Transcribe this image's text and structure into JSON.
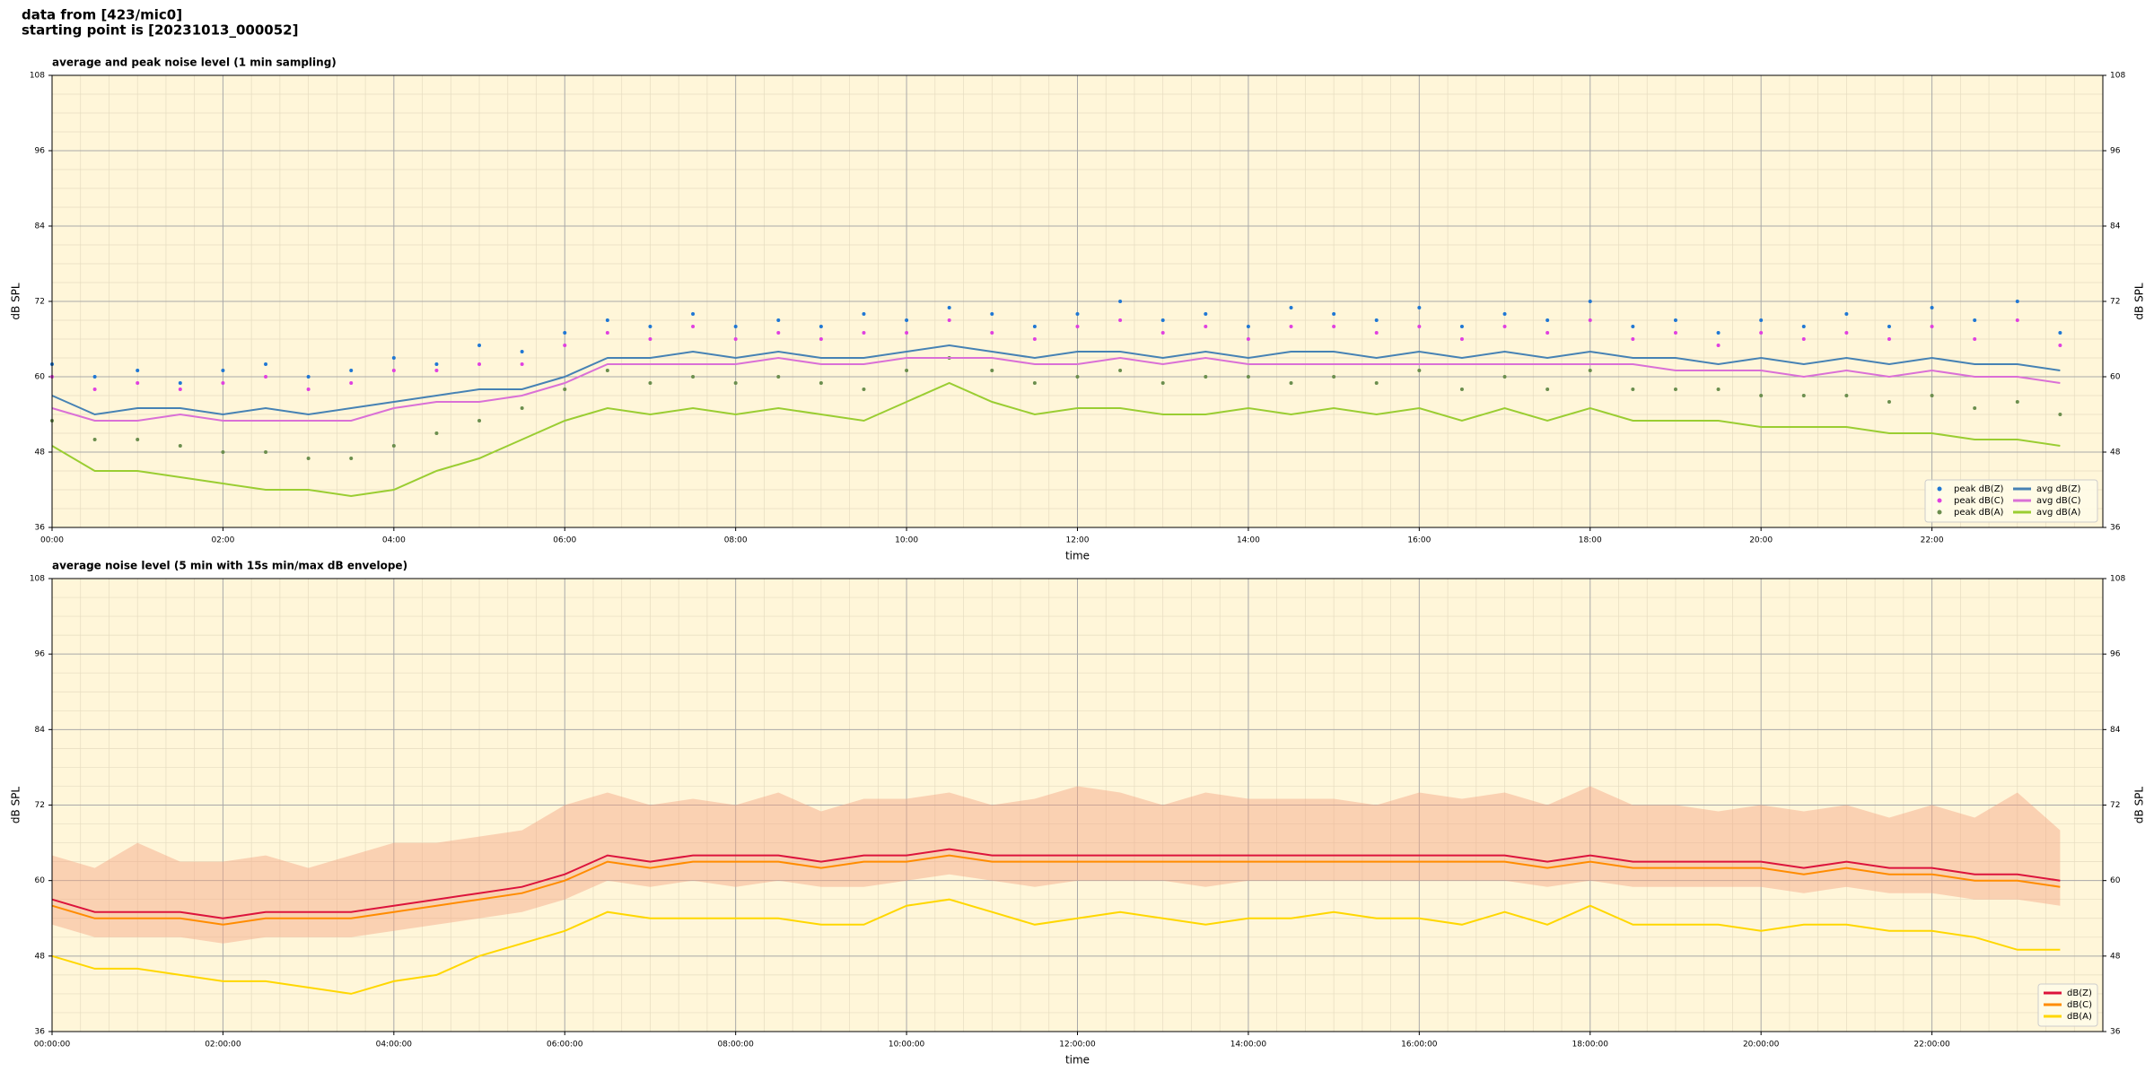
{
  "header": {
    "line1": "data from [423/mic0]",
    "line2": "starting point is [20231013_000052]"
  },
  "chart_data": [
    {
      "type": "line",
      "title": "average and peak noise level (1 min sampling)",
      "xlabel": "time",
      "ylabel": "dB SPL",
      "x": [
        "00:00",
        "00:30",
        "01:00",
        "01:30",
        "02:00",
        "02:30",
        "03:00",
        "03:30",
        "04:00",
        "04:30",
        "05:00",
        "05:30",
        "06:00",
        "06:30",
        "07:00",
        "07:30",
        "08:00",
        "08:30",
        "09:00",
        "09:30",
        "10:00",
        "10:30",
        "11:00",
        "11:30",
        "12:00",
        "12:30",
        "13:00",
        "13:30",
        "14:00",
        "14:30",
        "15:00",
        "15:30",
        "16:00",
        "16:30",
        "17:00",
        "17:30",
        "18:00",
        "18:30",
        "19:00",
        "19:30",
        "20:00",
        "20:30",
        "21:00",
        "21:30",
        "22:00",
        "22:30",
        "23:00",
        "23:30"
      ],
      "series": [
        {
          "name": "peak dB(Z)",
          "color": "#1f77d4",
          "mode": "markers",
          "values": [
            62,
            60,
            61,
            59,
            61,
            62,
            60,
            61,
            63,
            62,
            65,
            64,
            67,
            69,
            68,
            70,
            68,
            69,
            68,
            70,
            69,
            71,
            70,
            68,
            70,
            72,
            69,
            70,
            68,
            71,
            70,
            69,
            71,
            68,
            70,
            69,
            72,
            68,
            69,
            67,
            69,
            68,
            70,
            68,
            71,
            69,
            72,
            67
          ]
        },
        {
          "name": "peak dB(C)",
          "color": "#e040e0",
          "mode": "markers",
          "values": [
            60,
            58,
            59,
            58,
            59,
            60,
            58,
            59,
            61,
            61,
            62,
            62,
            65,
            67,
            66,
            68,
            66,
            67,
            66,
            67,
            67,
            69,
            67,
            66,
            68,
            69,
            67,
            68,
            66,
            68,
            68,
            67,
            68,
            66,
            68,
            67,
            69,
            66,
            67,
            65,
            67,
            66,
            67,
            66,
            68,
            66,
            69,
            65
          ]
        },
        {
          "name": "peak dB(A)",
          "color": "#6b8e4e",
          "mode": "markers",
          "values": [
            53,
            50,
            50,
            49,
            48,
            48,
            47,
            47,
            49,
            51,
            53,
            55,
            58,
            61,
            59,
            60,
            59,
            60,
            59,
            58,
            61,
            63,
            61,
            59,
            60,
            61,
            59,
            60,
            60,
            59,
            60,
            59,
            61,
            58,
            60,
            58,
            61,
            58,
            58,
            58,
            57,
            57,
            57,
            56,
            57,
            55,
            56,
            54
          ]
        },
        {
          "name": "avg dB(Z)",
          "color": "#4682b4",
          "mode": "line",
          "values": [
            57,
            54,
            55,
            55,
            54,
            55,
            54,
            55,
            56,
            57,
            58,
            58,
            60,
            63,
            63,
            64,
            63,
            64,
            63,
            63,
            64,
            65,
            64,
            63,
            64,
            64,
            63,
            64,
            63,
            64,
            64,
            63,
            64,
            63,
            64,
            63,
            64,
            63,
            63,
            62,
            63,
            62,
            63,
            62,
            63,
            62,
            62,
            61
          ]
        },
        {
          "name": "avg dB(C)",
          "color": "#da70d6",
          "mode": "line",
          "values": [
            55,
            53,
            53,
            54,
            53,
            53,
            53,
            53,
            55,
            56,
            56,
            57,
            59,
            62,
            62,
            62,
            62,
            63,
            62,
            62,
            63,
            63,
            63,
            62,
            62,
            63,
            62,
            63,
            62,
            62,
            62,
            62,
            62,
            62,
            62,
            62,
            62,
            62,
            61,
            61,
            61,
            60,
            61,
            60,
            61,
            60,
            60,
            59
          ]
        },
        {
          "name": "avg dB(A)",
          "color": "#9acd32",
          "mode": "line",
          "values": [
            49,
            45,
            45,
            44,
            43,
            42,
            42,
            41,
            42,
            45,
            47,
            50,
            53,
            55,
            54,
            55,
            54,
            55,
            54,
            53,
            56,
            59,
            56,
            54,
            55,
            55,
            54,
            54,
            55,
            54,
            55,
            54,
            55,
            53,
            55,
            53,
            55,
            53,
            53,
            53,
            52,
            52,
            52,
            51,
            51,
            50,
            50,
            49
          ]
        }
      ],
      "xlim": [
        "00:00",
        "24:00"
      ],
      "xticks": [
        "00:00",
        "02:00",
        "04:00",
        "06:00",
        "08:00",
        "10:00",
        "12:00",
        "14:00",
        "16:00",
        "18:00",
        "20:00",
        "22:00"
      ],
      "ylim": [
        36,
        108
      ],
      "yticks": [
        36,
        48,
        60,
        72,
        84,
        96,
        108
      ],
      "grid": true,
      "legend": "lower right",
      "legend_columns": 2
    },
    {
      "type": "line",
      "title": "average noise level (5 min with 15s min/max dB envelope)",
      "xlabel": "time",
      "ylabel": "dB SPL",
      "x": [
        "00:00:00",
        "00:30:00",
        "01:00:00",
        "01:30:00",
        "02:00:00",
        "02:30:00",
        "03:00:00",
        "03:30:00",
        "04:00:00",
        "04:30:00",
        "05:00:00",
        "05:30:00",
        "06:00:00",
        "06:30:00",
        "07:00:00",
        "07:30:00",
        "08:00:00",
        "08:30:00",
        "09:00:00",
        "09:30:00",
        "10:00:00",
        "10:30:00",
        "11:00:00",
        "11:30:00",
        "12:00:00",
        "12:30:00",
        "13:00:00",
        "13:30:00",
        "14:00:00",
        "14:30:00",
        "15:00:00",
        "15:30:00",
        "16:00:00",
        "16:30:00",
        "17:00:00",
        "17:30:00",
        "18:00:00",
        "18:30:00",
        "19:00:00",
        "19:30:00",
        "20:00:00",
        "20:30:00",
        "21:00:00",
        "21:30:00",
        "22:00:00",
        "22:30:00",
        "23:00:00",
        "23:30:00"
      ],
      "envelope": {
        "color": "#f4a582",
        "max": [
          64,
          62,
          66,
          63,
          63,
          64,
          62,
          64,
          66,
          66,
          67,
          68,
          72,
          74,
          72,
          73,
          72,
          74,
          71,
          73,
          73,
          74,
          72,
          73,
          75,
          74,
          72,
          74,
          73,
          73,
          73,
          72,
          74,
          73,
          74,
          72,
          75,
          72,
          72,
          71,
          72,
          71,
          72,
          70,
          72,
          70,
          74,
          68
        ],
        "min": [
          53,
          51,
          51,
          51,
          50,
          51,
          51,
          51,
          52,
          53,
          54,
          55,
          57,
          60,
          59,
          60,
          59,
          60,
          59,
          59,
          60,
          61,
          60,
          59,
          60,
          60,
          60,
          59,
          60,
          60,
          60,
          60,
          60,
          60,
          60,
          59,
          60,
          59,
          59,
          59,
          59,
          58,
          59,
          58,
          58,
          57,
          57,
          56
        ]
      },
      "series": [
        {
          "name": "dB(Z)",
          "color": "#dc143c",
          "mode": "line",
          "values": [
            57,
            55,
            55,
            55,
            54,
            55,
            55,
            55,
            56,
            57,
            58,
            59,
            61,
            64,
            63,
            64,
            64,
            64,
            63,
            64,
            64,
            65,
            64,
            64,
            64,
            64,
            64,
            64,
            64,
            64,
            64,
            64,
            64,
            64,
            64,
            63,
            64,
            63,
            63,
            63,
            63,
            62,
            63,
            62,
            62,
            61,
            61,
            60
          ]
        },
        {
          "name": "dB(C)",
          "color": "#ff8c00",
          "mode": "line",
          "values": [
            56,
            54,
            54,
            54,
            53,
            54,
            54,
            54,
            55,
            56,
            57,
            58,
            60,
            63,
            62,
            63,
            63,
            63,
            62,
            63,
            63,
            64,
            63,
            63,
            63,
            63,
            63,
            63,
            63,
            63,
            63,
            63,
            63,
            63,
            63,
            62,
            63,
            62,
            62,
            62,
            62,
            61,
            62,
            61,
            61,
            60,
            60,
            59
          ]
        },
        {
          "name": "dB(A)",
          "color": "#ffd700",
          "mode": "line",
          "values": [
            48,
            46,
            46,
            45,
            44,
            44,
            43,
            42,
            44,
            45,
            48,
            50,
            52,
            55,
            54,
            54,
            54,
            54,
            53,
            53,
            56,
            57,
            55,
            53,
            54,
            55,
            54,
            53,
            54,
            54,
            55,
            54,
            54,
            53,
            55,
            53,
            56,
            53,
            53,
            53,
            52,
            53,
            53,
            52,
            52,
            51,
            49,
            49
          ]
        }
      ],
      "xlim": [
        "00:00:00",
        "24:00:00"
      ],
      "xticks": [
        "00:00:00",
        "02:00:00",
        "04:00:00",
        "06:00:00",
        "08:00:00",
        "10:00:00",
        "12:00:00",
        "14:00:00",
        "16:00:00",
        "18:00:00",
        "20:00:00",
        "22:00:00"
      ],
      "ylim": [
        36,
        108
      ],
      "yticks": [
        36,
        48,
        60,
        72,
        84,
        96,
        108
      ],
      "grid": true,
      "legend": "lower right",
      "legend_columns": 1
    }
  ]
}
